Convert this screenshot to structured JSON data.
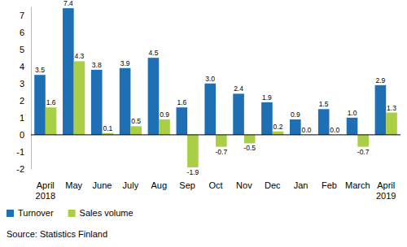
{
  "chart_data": {
    "type": "bar",
    "categories": [
      "April 2018",
      "May",
      "June",
      "July",
      "Aug",
      "Sep",
      "Oct",
      "Nov",
      "Dec",
      "Jan",
      "Feb",
      "March",
      "April 2019"
    ],
    "series": [
      {
        "name": "Turnover",
        "color": "#1f6fb5",
        "values": [
          3.5,
          7.4,
          3.8,
          3.9,
          4.5,
          1.6,
          3.0,
          2.4,
          1.9,
          0.9,
          1.5,
          1.0,
          2.9
        ],
        "value_labels": [
          "3.5",
          "7.4",
          "3.8",
          "3.9",
          "4.5",
          "1.6",
          "3.0",
          "2.4",
          "1.9",
          "0.9",
          "1.5",
          "1.0",
          "2.9"
        ]
      },
      {
        "name": "Sales volume",
        "color": "#a8cf45",
        "values": [
          1.6,
          4.3,
          0.1,
          0.5,
          0.9,
          -1.9,
          -0.7,
          -0.5,
          0.2,
          0.0,
          0.0,
          -0.7,
          1.3
        ],
        "value_labels": [
          "1.6",
          "4.3",
          "0.1",
          "0.5",
          "0.9",
          "-1.9",
          "-0.7",
          "-0.5",
          "0.2",
          "0.0",
          "0.0",
          "-0.7",
          "1.3"
        ]
      }
    ],
    "ylim": [
      -2,
      7.5
    ],
    "yticks": [
      -2,
      -1,
      0,
      1,
      2,
      3,
      4,
      5,
      6,
      7
    ],
    "grid": false,
    "data_labels": true,
    "legend": "bottom-left",
    "source": "Source: Statistics Finland"
  }
}
